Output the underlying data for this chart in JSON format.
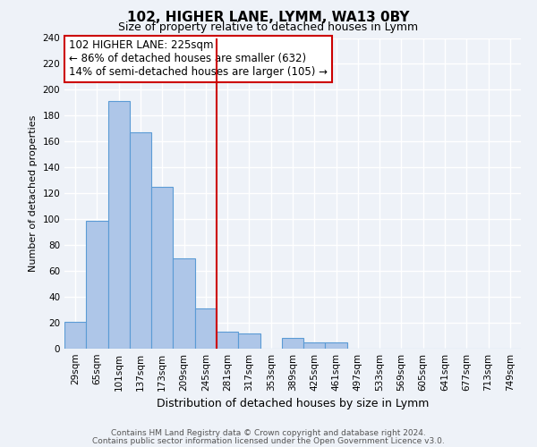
{
  "title": "102, HIGHER LANE, LYMM, WA13 0BY",
  "subtitle": "Size of property relative to detached houses in Lymm",
  "xlabel": "Distribution of detached houses by size in Lymm",
  "ylabel": "Number of detached properties",
  "bar_labels": [
    "29sqm",
    "65sqm",
    "101sqm",
    "137sqm",
    "173sqm",
    "209sqm",
    "245sqm",
    "281sqm",
    "317sqm",
    "353sqm",
    "389sqm",
    "425sqm",
    "461sqm",
    "497sqm",
    "533sqm",
    "569sqm",
    "605sqm",
    "641sqm",
    "677sqm",
    "713sqm",
    "749sqm"
  ],
  "bar_values": [
    21,
    99,
    191,
    167,
    125,
    70,
    31,
    13,
    12,
    0,
    8,
    5,
    5,
    0,
    0,
    0,
    0,
    0,
    0,
    0,
    0
  ],
  "bar_color": "#aec6e8",
  "bar_edge_color": "#5b9bd5",
  "ylim": [
    0,
    240
  ],
  "yticks": [
    0,
    20,
    40,
    60,
    80,
    100,
    120,
    140,
    160,
    180,
    200,
    220,
    240
  ],
  "property_line_x": 6.5,
  "annotation_title": "102 HIGHER LANE: 225sqm",
  "annotation_line1": "← 86% of detached houses are smaller (632)",
  "annotation_line2": "14% of semi-detached houses are larger (105) →",
  "footer_line1": "Contains HM Land Registry data © Crown copyright and database right 2024.",
  "footer_line2": "Contains public sector information licensed under the Open Government Licence v3.0.",
  "background_color": "#eef2f8",
  "grid_color": "#ffffff",
  "annotation_box_facecolor": "#ffffff",
  "annotation_box_edgecolor": "#cc0000",
  "property_line_color": "#cc0000",
  "title_fontsize": 11,
  "subtitle_fontsize": 9,
  "tick_fontsize": 7.5,
  "ylabel_fontsize": 8,
  "xlabel_fontsize": 9,
  "annotation_fontsize": 8.5,
  "footer_fontsize": 6.5
}
